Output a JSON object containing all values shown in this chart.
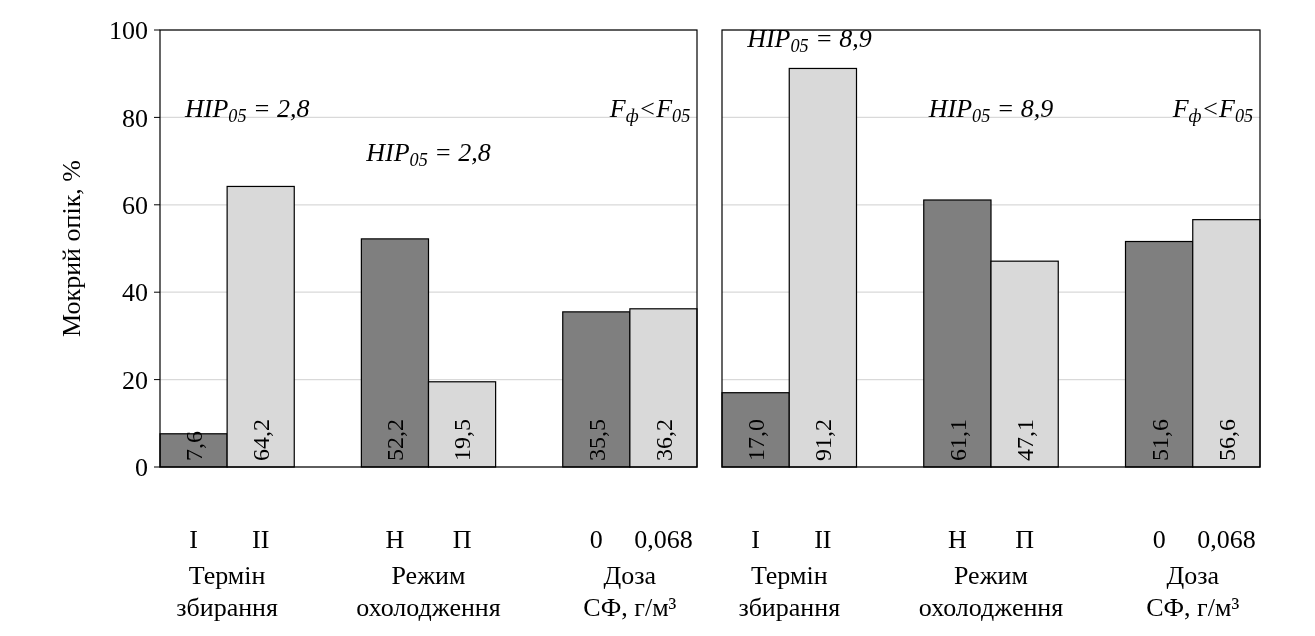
{
  "chart_data": [
    {
      "type": "bar",
      "ylabel": "Мокрий опік, %",
      "categories": [
        "I",
        "II",
        null,
        "Н",
        "П",
        null,
        "0",
        "0,068"
      ],
      "values": [
        7.6,
        64.2,
        null,
        52.2,
        19.5,
        null,
        35.5,
        36.2
      ],
      "colors": [
        "#7f7f7f",
        "#d9d9d9",
        null,
        "#7f7f7f",
        "#d9d9d9",
        null,
        "#7f7f7f",
        "#d9d9d9"
      ],
      "value_labels": [
        "7,6",
        "64,2",
        null,
        "52,2",
        "19,5",
        null,
        "35,5",
        "36,2"
      ],
      "ylim": [
        0,
        100
      ],
      "yticks": [
        0,
        20,
        40,
        60,
        80,
        100
      ],
      "grid": "y",
      "annotations": [
        "HIP$_{05}$ = 2,8",
        "HIP$_{05}$ = 2,8",
        "F$_{ф}$<F$_{05}$",
        "Термін збирання",
        "Режим охолодження",
        "Доза СФ, г/м³"
      ]
    },
    {
      "type": "bar",
      "categories": [
        "I",
        "II",
        null,
        "Н",
        "П",
        null,
        "0",
        "0,068"
      ],
      "values": [
        17.0,
        91.2,
        null,
        61.1,
        47.1,
        null,
        51.6,
        56.6
      ],
      "colors": [
        "#7f7f7f",
        "#d9d9d9",
        null,
        "#7f7f7f",
        "#d9d9d9",
        null,
        "#7f7f7f",
        "#d9d9d9"
      ],
      "value_labels": [
        "17,0",
        "91,2",
        null,
        "61,1",
        "47,1",
        null,
        "51,6",
        "56,6"
      ],
      "ylim": [
        0,
        100
      ],
      "yticks": [
        0,
        20,
        40,
        60,
        80,
        100
      ],
      "grid": "y",
      "tick_labels": "x",
      "annotations": [
        "HIP$_{05}$ = 8,9",
        "HIP$_{05}$ = 8,9",
        "F$_{ф}$<F$_{05}$",
        "Термін збирання",
        "Режим охолодження",
        "Доза СФ, г/м³"
      ]
    }
  ]
}
